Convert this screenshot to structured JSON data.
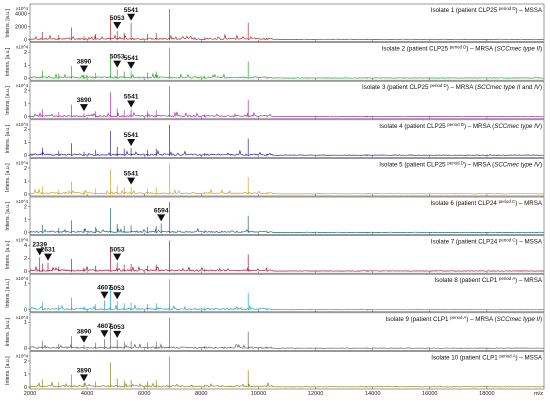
{
  "chart_data": {
    "type": "line",
    "x_axis": {
      "range": [
        2000,
        20000
      ],
      "ticks": [
        2000,
        4000,
        6000,
        8000,
        10000,
        12000,
        14000,
        16000,
        18000
      ],
      "unit": "m/z"
    },
    "common_peaks": [
      {
        "mz": 2430,
        "rel": 0.25
      },
      {
        "mz": 3010,
        "rel": 0.15
      },
      {
        "mz": 3450,
        "rel": 0.4
      },
      {
        "mz": 3890,
        "rel": 0.12
      },
      {
        "mz": 4300,
        "rel": 0.18
      },
      {
        "mz": 4820,
        "rel": 0.8
      },
      {
        "mz": 5053,
        "rel": 0.28
      },
      {
        "mz": 5300,
        "rel": 0.22
      },
      {
        "mz": 5541,
        "rel": 0.24
      },
      {
        "mz": 6120,
        "rel": 0.18
      },
      {
        "mz": 6420,
        "rel": 0.22
      },
      {
        "mz": 6890,
        "rel": 1.0
      },
      {
        "mz": 8120,
        "rel": 0.08
      },
      {
        "mz": 9640,
        "rel": 0.55
      },
      {
        "mz": 10300,
        "rel": 0.05
      },
      {
        "mz": 13800,
        "rel": 0.03
      }
    ],
    "panels": [
      {
        "title": "Isolate 1 (patient CLP25 period D) – MSSA",
        "title_parts": [
          "Isolate 1 (patient CLP25 ",
          "period D",
          ") – MSSA"
        ],
        "color": "#b03030",
        "y_exponent": "x10^4",
        "y_ticks": [
          "4000",
          "2000",
          "0"
        ],
        "ylabel": "Intens. [a.u.]",
        "markers": [
          {
            "label": "5053",
            "mz": 5053,
            "rel": 0.28
          },
          {
            "label": "5541",
            "mz": 5541,
            "rel": 0.55
          }
        ]
      },
      {
        "title": "Isolate 2 (patient CLP25 period D) – MRSA (SCCmec type II)",
        "title_parts": [
          "Isolate 2 (patient CLP25 ",
          "period D",
          ") – MRSA (",
          "SCCmec type II",
          ")"
        ],
        "color": "#2aaa2a",
        "y_exponent": "x10^4",
        "y_ticks": [
          "2",
          "1",
          "0"
        ],
        "ylabel": "Intens. [a.u.]",
        "markers": [
          {
            "label": "3890",
            "mz": 3890,
            "rel": 0.12
          },
          {
            "label": "5053",
            "mz": 5053,
            "rel": 0.28
          },
          {
            "label": "5541",
            "mz": 5541,
            "rel": 0.24
          }
        ]
      },
      {
        "title": "Isolate 3 (patient CLP25 period D) – MRSA (SCCmec type II and IV)",
        "title_parts": [
          "Isolate 3 (patient CLP25 ",
          "period D",
          ") – MRSA (",
          "SCCmec  type II",
          " and ",
          "IV",
          ")"
        ],
        "color": "#b030b0",
        "y_exponent": "x10^4",
        "y_ticks": [
          "2",
          "1",
          "0"
        ],
        "ylabel": "Intens. [a.u.]",
        "markers": [
          {
            "label": "3890",
            "mz": 3890,
            "rel": 0.12
          },
          {
            "label": "5541",
            "mz": 5541,
            "rel": 0.24
          }
        ]
      },
      {
        "title": "Isolate 4 (patient CLP25 period D) – MRSA (SCCmec type IV)",
        "title_parts": [
          "Isolate 4 (patient CLP25 ",
          "period D",
          ") – MRSA (",
          "SCCmec type IV",
          ")"
        ],
        "color": "#2a2a9a",
        "y_exponent": "x10^4",
        "y_ticks": [
          "2",
          "1",
          "0"
        ],
        "ylabel": "Intens. [a.u.]",
        "markers": [
          {
            "label": "5541",
            "mz": 5541,
            "rel": 0.24
          }
        ]
      },
      {
        "title": "Isolate 5 (patient CLP25 period D) – MRSA (SCCmec type IV)",
        "title_parts": [
          "Isolate 5 (patient CLP25 ",
          "period D",
          ") – MRSA (",
          "SCCmec type IV",
          ")"
        ],
        "color": "#d4a020",
        "y_exponent": "x10^4",
        "y_ticks": [
          "2",
          "1",
          "0"
        ],
        "ylabel": "Intens. [a.u.]",
        "markers": [
          {
            "label": "5541",
            "mz": 5541,
            "rel": 0.24
          }
        ]
      },
      {
        "title": "Isolate 6 (patient CLP24 period C) – MRSA",
        "title_parts": [
          "Isolate 6 (patient CLP24 ",
          "period C",
          ") – MRSA"
        ],
        "color": "#1a6a6a",
        "y_exponent": "x10^4",
        "y_ticks": [
          "2",
          "1",
          "0"
        ],
        "ylabel": "Intens. [a.u.]",
        "markers": [
          {
            "label": "6594",
            "mz": 6594,
            "rel": 0.3
          }
        ]
      },
      {
        "title": "Isolate 7 (patient CLP24 period C) – MSSA",
        "title_parts": [
          "Isolate 7 (patient CLP24 ",
          "period C",
          ") – MSSA"
        ],
        "color": "#a02040",
        "y_exponent": "x10^4",
        "y_ticks": [
          "4",
          "2",
          "0"
        ],
        "ylabel": "Intens. [a.u.]",
        "markers": [
          {
            "label": "2339",
            "mz": 2339,
            "rel": 0.45
          },
          {
            "label": "2631",
            "mz": 2631,
            "rel": 0.28
          },
          {
            "label": "5053",
            "mz": 5053,
            "rel": 0.28
          }
        ]
      },
      {
        "title": "Isolate 8 (patient CLP1 period A) – MRSA",
        "title_parts": [
          "Isolate 8 (patient CLP1 ",
          "period A",
          ") – MRSA"
        ],
        "color": "#20a8c8",
        "y_exponent": "x10^4",
        "y_ticks": [
          "1",
          "0"
        ],
        "ylabel": "Intens. [a.u.]",
        "markers": [
          {
            "label": "4607",
            "mz": 4607,
            "rel": 0.3
          },
          {
            "label": "5053",
            "mz": 5053,
            "rel": 0.28
          }
        ]
      },
      {
        "title": "Isolate 9 (patient CLP1 period A) – MRSA (SCCmec type II)",
        "title_parts": [
          "Isolate 9 (patient CLP1 ",
          "period A",
          ") – MRSA (",
          "SCCmec type II",
          ")"
        ],
        "color": "#666666",
        "y_exponent": "x10^4",
        "y_ticks": [
          "1",
          "0"
        ],
        "ylabel": "Intens. [a.u.]",
        "markers": [
          {
            "label": "3890",
            "mz": 3890,
            "rel": 0.12
          },
          {
            "label": "4607",
            "mz": 4607,
            "rel": 0.3
          },
          {
            "label": "5053",
            "mz": 5053,
            "rel": 0.28
          }
        ]
      },
      {
        "title": "Isolate 10 (patient CLP1 period A) – MSSA",
        "title_parts": [
          "Isolate 10 (patient CLP1 ",
          "period A",
          ") – MSSA"
        ],
        "color": "#8a8a20",
        "y_exponent": "x10^4",
        "y_ticks": [
          "2",
          "1",
          "0"
        ],
        "ylabel": "Intens. [a.u.]",
        "markers": [
          {
            "label": "3890",
            "mz": 3890,
            "rel": 0.12
          }
        ]
      }
    ]
  }
}
